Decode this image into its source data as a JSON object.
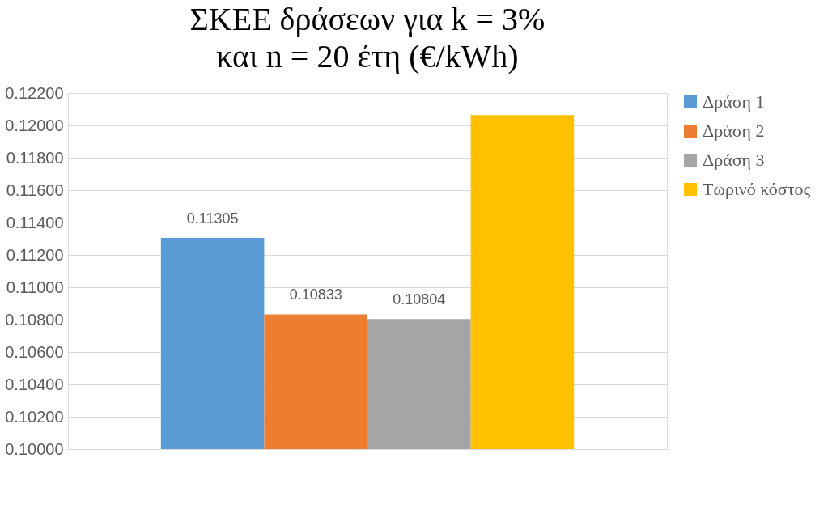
{
  "chart_data": {
    "type": "bar",
    "title": "ΣΚΕΕ δράσεων για k = 3% και n = 20 έτη (€/kWh)",
    "categories": [
      null
    ],
    "series": [
      {
        "name": "Δράση 1",
        "color": "#5b9bd5",
        "values": [
          0.11305
        ],
        "value_labels": [
          "0.11305"
        ]
      },
      {
        "name": "Δράση 2",
        "color": "#ed7d31",
        "values": [
          0.10833
        ],
        "value_labels": [
          "0.10833"
        ]
      },
      {
        "name": "Δράση 3",
        "color": "#a5a5a5",
        "values": [
          0.10804
        ],
        "value_labels": [
          "0.10804"
        ]
      },
      {
        "name": "Τωρινό κόστος",
        "color": "#ffc000",
        "values": [
          0.12064
        ],
        "value_labels": [
          null
        ]
      }
    ],
    "ylim": [
      0.1,
      0.122
    ],
    "yticks": [
      {
        "value": 0.1,
        "label": "0.10000"
      },
      {
        "value": 0.102,
        "label": "0.10200"
      },
      {
        "value": 0.104,
        "label": "0.10400"
      },
      {
        "value": 0.106,
        "label": "0.10600"
      },
      {
        "value": 0.108,
        "label": "0.10800"
      },
      {
        "value": 0.11,
        "label": "0.11000"
      },
      {
        "value": 0.112,
        "label": "0.11200"
      },
      {
        "value": 0.114,
        "label": "0.11400"
      },
      {
        "value": 0.116,
        "label": "0.11600"
      },
      {
        "value": 0.118,
        "label": "0.11800"
      },
      {
        "value": 0.12,
        "label": "0.12000"
      },
      {
        "value": 0.122,
        "label": "0.12200"
      }
    ],
    "grid": "y",
    "legend": "right",
    "tick_labels": "y"
  }
}
